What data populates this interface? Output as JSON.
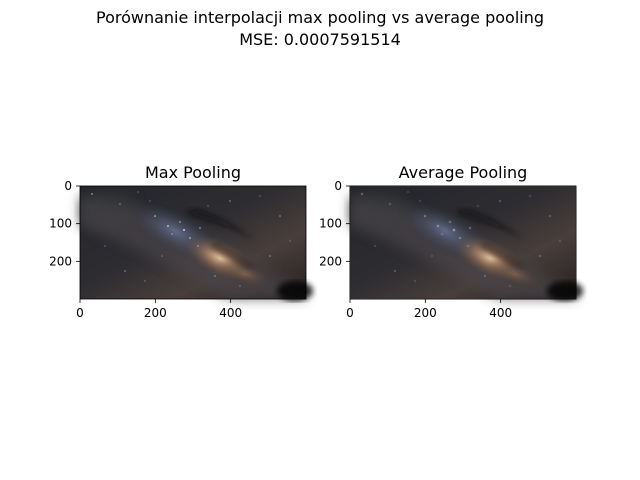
{
  "figure": {
    "title_line1": "Porównanie interpolacji max pooling vs average pooling",
    "title_line2": "MSE: 0.0007591514"
  },
  "chart_data": [
    {
      "type": "image",
      "title": "Max Pooling",
      "image_content": "Milky Way night sky photograph",
      "pooling": "max",
      "xlim": [
        0,
        600
      ],
      "ylim": [
        300,
        0
      ],
      "xticks": [
        0,
        200,
        400
      ],
      "yticks": [
        0,
        100,
        200
      ]
    },
    {
      "type": "image",
      "title": "Average Pooling",
      "image_content": "Milky Way night sky photograph",
      "pooling": "average",
      "xlim": [
        0,
        600
      ],
      "ylim": [
        300,
        0
      ],
      "xticks": [
        0,
        200,
        400
      ],
      "yticks": [
        0,
        100,
        200
      ]
    }
  ]
}
